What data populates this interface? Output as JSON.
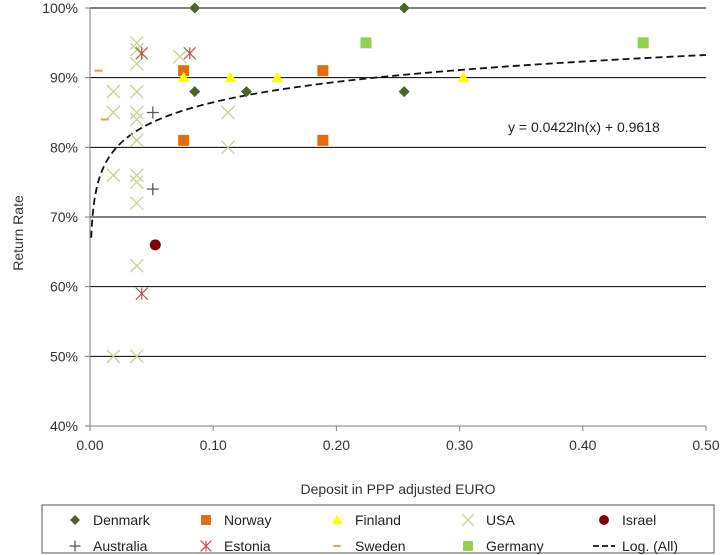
{
  "chart_data": {
    "type": "scatter",
    "title": "",
    "xlabel": "Deposit in PPP adjusted EURO",
    "ylabel": "Return Rate",
    "xlim": [
      0,
      0.5
    ],
    "ylim": [
      0.4,
      1.0
    ],
    "x_ticks": [
      {
        "value": 0.0,
        "label": "0.00"
      },
      {
        "value": 0.1,
        "label": "0.10"
      },
      {
        "value": 0.2,
        "label": "0.20"
      },
      {
        "value": 0.3,
        "label": "0.30"
      },
      {
        "value": 0.4,
        "label": "0.40"
      },
      {
        "value": 0.5,
        "label": "0.50"
      }
    ],
    "y_ticks": [
      {
        "value": 0.4,
        "label": "40%"
      },
      {
        "value": 0.5,
        "label": "50%"
      },
      {
        "value": 0.6,
        "label": "60%"
      },
      {
        "value": 0.7,
        "label": "70%"
      },
      {
        "value": 0.8,
        "label": "80%"
      },
      {
        "value": 0.9,
        "label": "90%"
      },
      {
        "value": 1.0,
        "label": "100%"
      }
    ],
    "grid": "horizontal",
    "legend_position": "bottom",
    "trendline": {
      "name": "Log. (All)",
      "equation": "y = 0.0422ln(x)  + 0.9618",
      "a": 0.0422,
      "b": 0.9618,
      "x_start": 0.001,
      "x_end": 0.5,
      "color": "#111111"
    },
    "series": [
      {
        "name": "Denmark",
        "marker": "diamond",
        "color": "#4f6228",
        "points": [
          [
            0.085,
            1.0
          ],
          [
            0.255,
            1.0
          ],
          [
            0.085,
            0.88
          ],
          [
            0.127,
            0.88
          ],
          [
            0.255,
            0.88
          ]
        ]
      },
      {
        "name": "Norway",
        "marker": "square",
        "color": "#e46c0a",
        "points": [
          [
            0.076,
            0.91
          ],
          [
            0.189,
            0.91
          ],
          [
            0.076,
            0.81
          ],
          [
            0.189,
            0.81
          ]
        ]
      },
      {
        "name": "Finland",
        "marker": "triangle",
        "color": "#ffff00",
        "points": [
          [
            0.076,
            0.9
          ],
          [
            0.114,
            0.9
          ],
          [
            0.152,
            0.9
          ],
          [
            0.303,
            0.9
          ]
        ]
      },
      {
        "name": "USA",
        "marker": "x",
        "color": "#c4d79b",
        "points": [
          [
            0.019,
            0.88
          ],
          [
            0.038,
            0.88
          ],
          [
            0.038,
            0.95
          ],
          [
            0.038,
            0.94
          ],
          [
            0.038,
            0.92
          ],
          [
            0.019,
            0.85
          ],
          [
            0.038,
            0.85
          ],
          [
            0.038,
            0.84
          ],
          [
            0.038,
            0.81
          ],
          [
            0.019,
            0.76
          ],
          [
            0.038,
            0.76
          ],
          [
            0.038,
            0.75
          ],
          [
            0.038,
            0.72
          ],
          [
            0.038,
            0.63
          ],
          [
            0.019,
            0.5
          ],
          [
            0.038,
            0.5
          ],
          [
            0.073,
            0.93
          ],
          [
            0.112,
            0.85
          ],
          [
            0.112,
            0.8
          ]
        ]
      },
      {
        "name": "Israel",
        "marker": "circle",
        "color": "#7f0000",
        "points": [
          [
            0.053,
            0.66
          ]
        ]
      },
      {
        "name": "Australia",
        "marker": "plus",
        "color": "#555555",
        "points": [
          [
            0.051,
            0.85
          ],
          [
            0.051,
            0.74
          ]
        ]
      },
      {
        "name": "Estonia",
        "marker": "asterisk",
        "color": "#c0504d",
        "points": [
          [
            0.042,
            0.935
          ],
          [
            0.081,
            0.935
          ],
          [
            0.042,
            0.59
          ]
        ]
      },
      {
        "name": "Sweden",
        "marker": "dash",
        "color": "#f79646",
        "points": [
          [
            0.007,
            0.91
          ],
          [
            0.012,
            0.84
          ]
        ]
      },
      {
        "name": "Germany",
        "marker": "square",
        "color": "#92d050",
        "points": [
          [
            0.224,
            0.95
          ],
          [
            0.449,
            0.95
          ]
        ]
      }
    ],
    "legend": [
      "Denmark",
      "Norway",
      "Finland",
      "USA",
      "Israel",
      "Australia",
      "Estonia",
      "Sweden",
      "Germany",
      "Log. (All)"
    ]
  }
}
